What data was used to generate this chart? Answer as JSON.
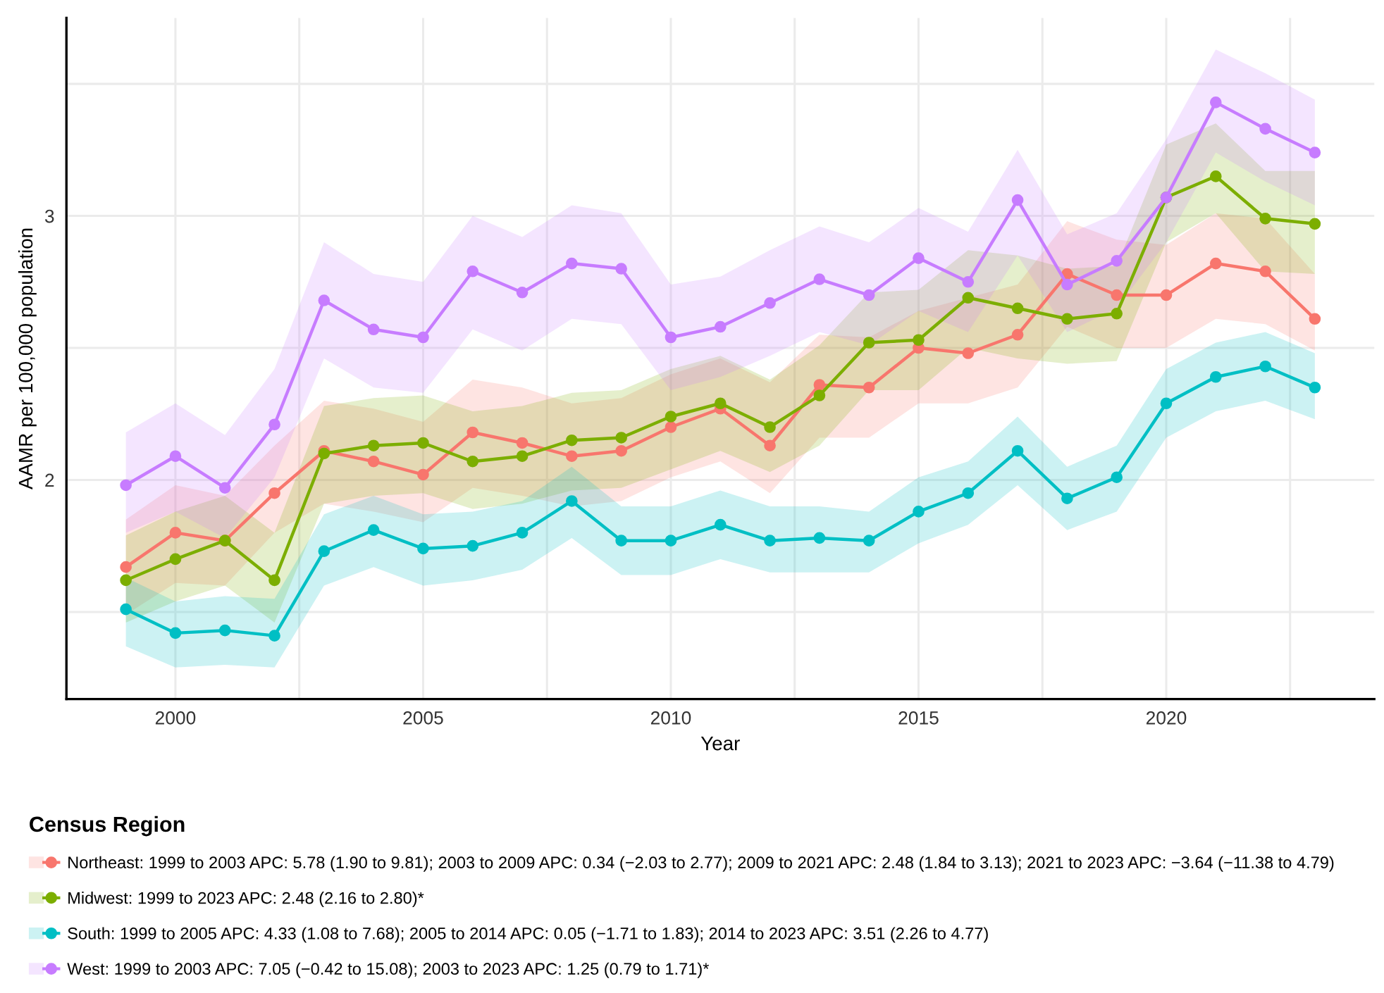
{
  "chart_data": {
    "type": "line",
    "xlabel": "Year",
    "ylabel": "AAMR per 100,000 population",
    "legend_title": "Census Region",
    "legend": "bottom",
    "grid": true,
    "marker": "circle",
    "line_style": "solid",
    "x": [
      1999,
      2000,
      2001,
      2002,
      2003,
      2004,
      2005,
      2006,
      2007,
      2008,
      2009,
      2010,
      2011,
      2012,
      2013,
      2014,
      2015,
      2016,
      2017,
      2018,
      2019,
      2020,
      2021,
      2022,
      2023
    ],
    "xlim": [
      1997.8,
      2024.2
    ],
    "ylim": [
      1.17,
      3.75
    ],
    "xticks": [
      2000,
      {
        "value": 2002.5,
        "label": null
      },
      2005,
      {
        "value": 2007.5,
        "label": null
      },
      2010,
      {
        "value": 2012.5,
        "label": null
      },
      2015,
      {
        "value": 2017.5,
        "label": null
      },
      2020,
      {
        "value": 2022.5,
        "label": null
      }
    ],
    "yticks": [
      {
        "value": 1.5,
        "label": null
      },
      2,
      {
        "value": 2.5,
        "label": null
      },
      3,
      {
        "value": 3.5,
        "label": null
      }
    ],
    "series": [
      {
        "name": "Northeast: 1999 to 2003 APC: 5.78 (1.90 to 9.81); 2003 to 2009 APC: 0.34 (−2.03 to 2.77); 2009 to 2021 APC: 2.48 (1.84 to 3.13); 2021 to 2023 APC: −3.64 (−11.38 to 4.79)",
        "color": "#f8766d",
        "values": [
          1.67,
          1.8,
          1.77,
          1.95,
          2.11,
          2.07,
          2.02,
          2.18,
          2.14,
          2.09,
          2.11,
          2.2,
          2.27,
          2.13,
          2.36,
          2.35,
          2.5,
          2.48,
          2.55,
          2.78,
          2.7,
          2.7,
          2.82,
          2.79,
          2.61
        ],
        "upper": [
          1.85,
          1.98,
          1.94,
          2.13,
          2.3,
          2.27,
          2.22,
          2.38,
          2.35,
          2.29,
          2.31,
          2.4,
          2.46,
          2.37,
          2.55,
          2.54,
          2.64,
          2.69,
          2.74,
          2.98,
          2.91,
          2.89,
          3.01,
          2.99,
          2.78
        ],
        "lower": [
          1.49,
          1.61,
          1.6,
          1.8,
          1.91,
          1.88,
          1.84,
          1.97,
          1.94,
          1.9,
          1.92,
          2.01,
          2.07,
          1.95,
          2.16,
          2.16,
          2.29,
          2.29,
          2.35,
          2.58,
          2.5,
          2.5,
          2.61,
          2.59,
          2.49
        ]
      },
      {
        "name": "Midwest: 1999 to 2023 APC: 2.48 (2.16 to 2.80)*",
        "color": "#7cae00",
        "values": [
          1.62,
          1.7,
          1.77,
          1.62,
          2.1,
          2.13,
          2.14,
          2.07,
          2.09,
          2.15,
          2.16,
          2.24,
          2.29,
          2.2,
          2.32,
          2.52,
          2.53,
          2.69,
          2.65,
          2.61,
          2.63,
          3.07,
          3.15,
          2.99,
          2.97
        ],
        "upper": [
          1.79,
          1.88,
          1.94,
          1.8,
          2.28,
          2.31,
          2.32,
          2.26,
          2.28,
          2.33,
          2.34,
          2.42,
          2.47,
          2.38,
          2.51,
          2.71,
          2.72,
          2.87,
          2.85,
          2.8,
          2.81,
          3.27,
          3.35,
          3.17,
          3.17
        ],
        "lower": [
          1.46,
          1.54,
          1.6,
          1.46,
          1.91,
          1.94,
          1.95,
          1.89,
          1.91,
          1.96,
          1.97,
          2.04,
          2.11,
          2.03,
          2.13,
          2.34,
          2.34,
          2.5,
          2.46,
          2.44,
          2.45,
          2.9,
          3.01,
          2.79,
          2.78
        ]
      },
      {
        "name": "South: 1999 to 2005 APC: 4.33 (1.08 to 7.68); 2005 to 2014 APC: 0.05 (−1.71 to 1.83); 2014 to 2023 APC: 3.51 (2.26 to 4.77)",
        "color": "#00bfc4",
        "values": [
          1.51,
          1.42,
          1.43,
          1.41,
          1.73,
          1.81,
          1.74,
          1.75,
          1.8,
          1.92,
          1.77,
          1.77,
          1.83,
          1.77,
          1.78,
          1.77,
          1.88,
          1.95,
          2.11,
          1.93,
          2.01,
          2.29,
          2.39,
          2.43,
          2.35
        ],
        "upper": [
          1.63,
          1.54,
          1.56,
          1.55,
          1.87,
          1.94,
          1.87,
          1.88,
          1.92,
          2.05,
          1.9,
          1.9,
          1.96,
          1.9,
          1.9,
          1.88,
          2.01,
          2.07,
          2.24,
          2.05,
          2.13,
          2.42,
          2.52,
          2.56,
          2.48
        ],
        "lower": [
          1.37,
          1.29,
          1.3,
          1.29,
          1.6,
          1.67,
          1.6,
          1.62,
          1.66,
          1.78,
          1.64,
          1.64,
          1.7,
          1.65,
          1.65,
          1.65,
          1.76,
          1.83,
          1.98,
          1.81,
          1.88,
          2.16,
          2.26,
          2.3,
          2.23
        ]
      },
      {
        "name": "West: 1999 to 2003 APC: 7.05 (−0.42 to 15.08); 2003 to 2023 APC: 1.25 (0.79 to 1.71)*",
        "color": "#c77cff",
        "values": [
          1.98,
          2.09,
          1.97,
          2.21,
          2.68,
          2.57,
          2.54,
          2.79,
          2.71,
          2.82,
          2.8,
          2.54,
          2.58,
          2.67,
          2.76,
          2.7,
          2.84,
          2.75,
          3.06,
          2.74,
          2.83,
          3.07,
          3.43,
          3.33,
          3.24
        ],
        "upper": [
          2.18,
          2.29,
          2.17,
          2.42,
          2.9,
          2.78,
          2.75,
          3.0,
          2.92,
          3.04,
          3.01,
          2.74,
          2.77,
          2.87,
          2.96,
          2.9,
          3.03,
          2.94,
          3.25,
          2.93,
          3.01,
          3.29,
          3.63,
          3.54,
          3.44
        ],
        "lower": [
          1.8,
          1.88,
          1.78,
          2.01,
          2.46,
          2.35,
          2.33,
          2.57,
          2.49,
          2.61,
          2.59,
          2.34,
          2.39,
          2.47,
          2.56,
          2.51,
          2.64,
          2.56,
          2.85,
          2.56,
          2.65,
          2.9,
          3.24,
          3.13,
          3.04
        ]
      }
    ]
  }
}
